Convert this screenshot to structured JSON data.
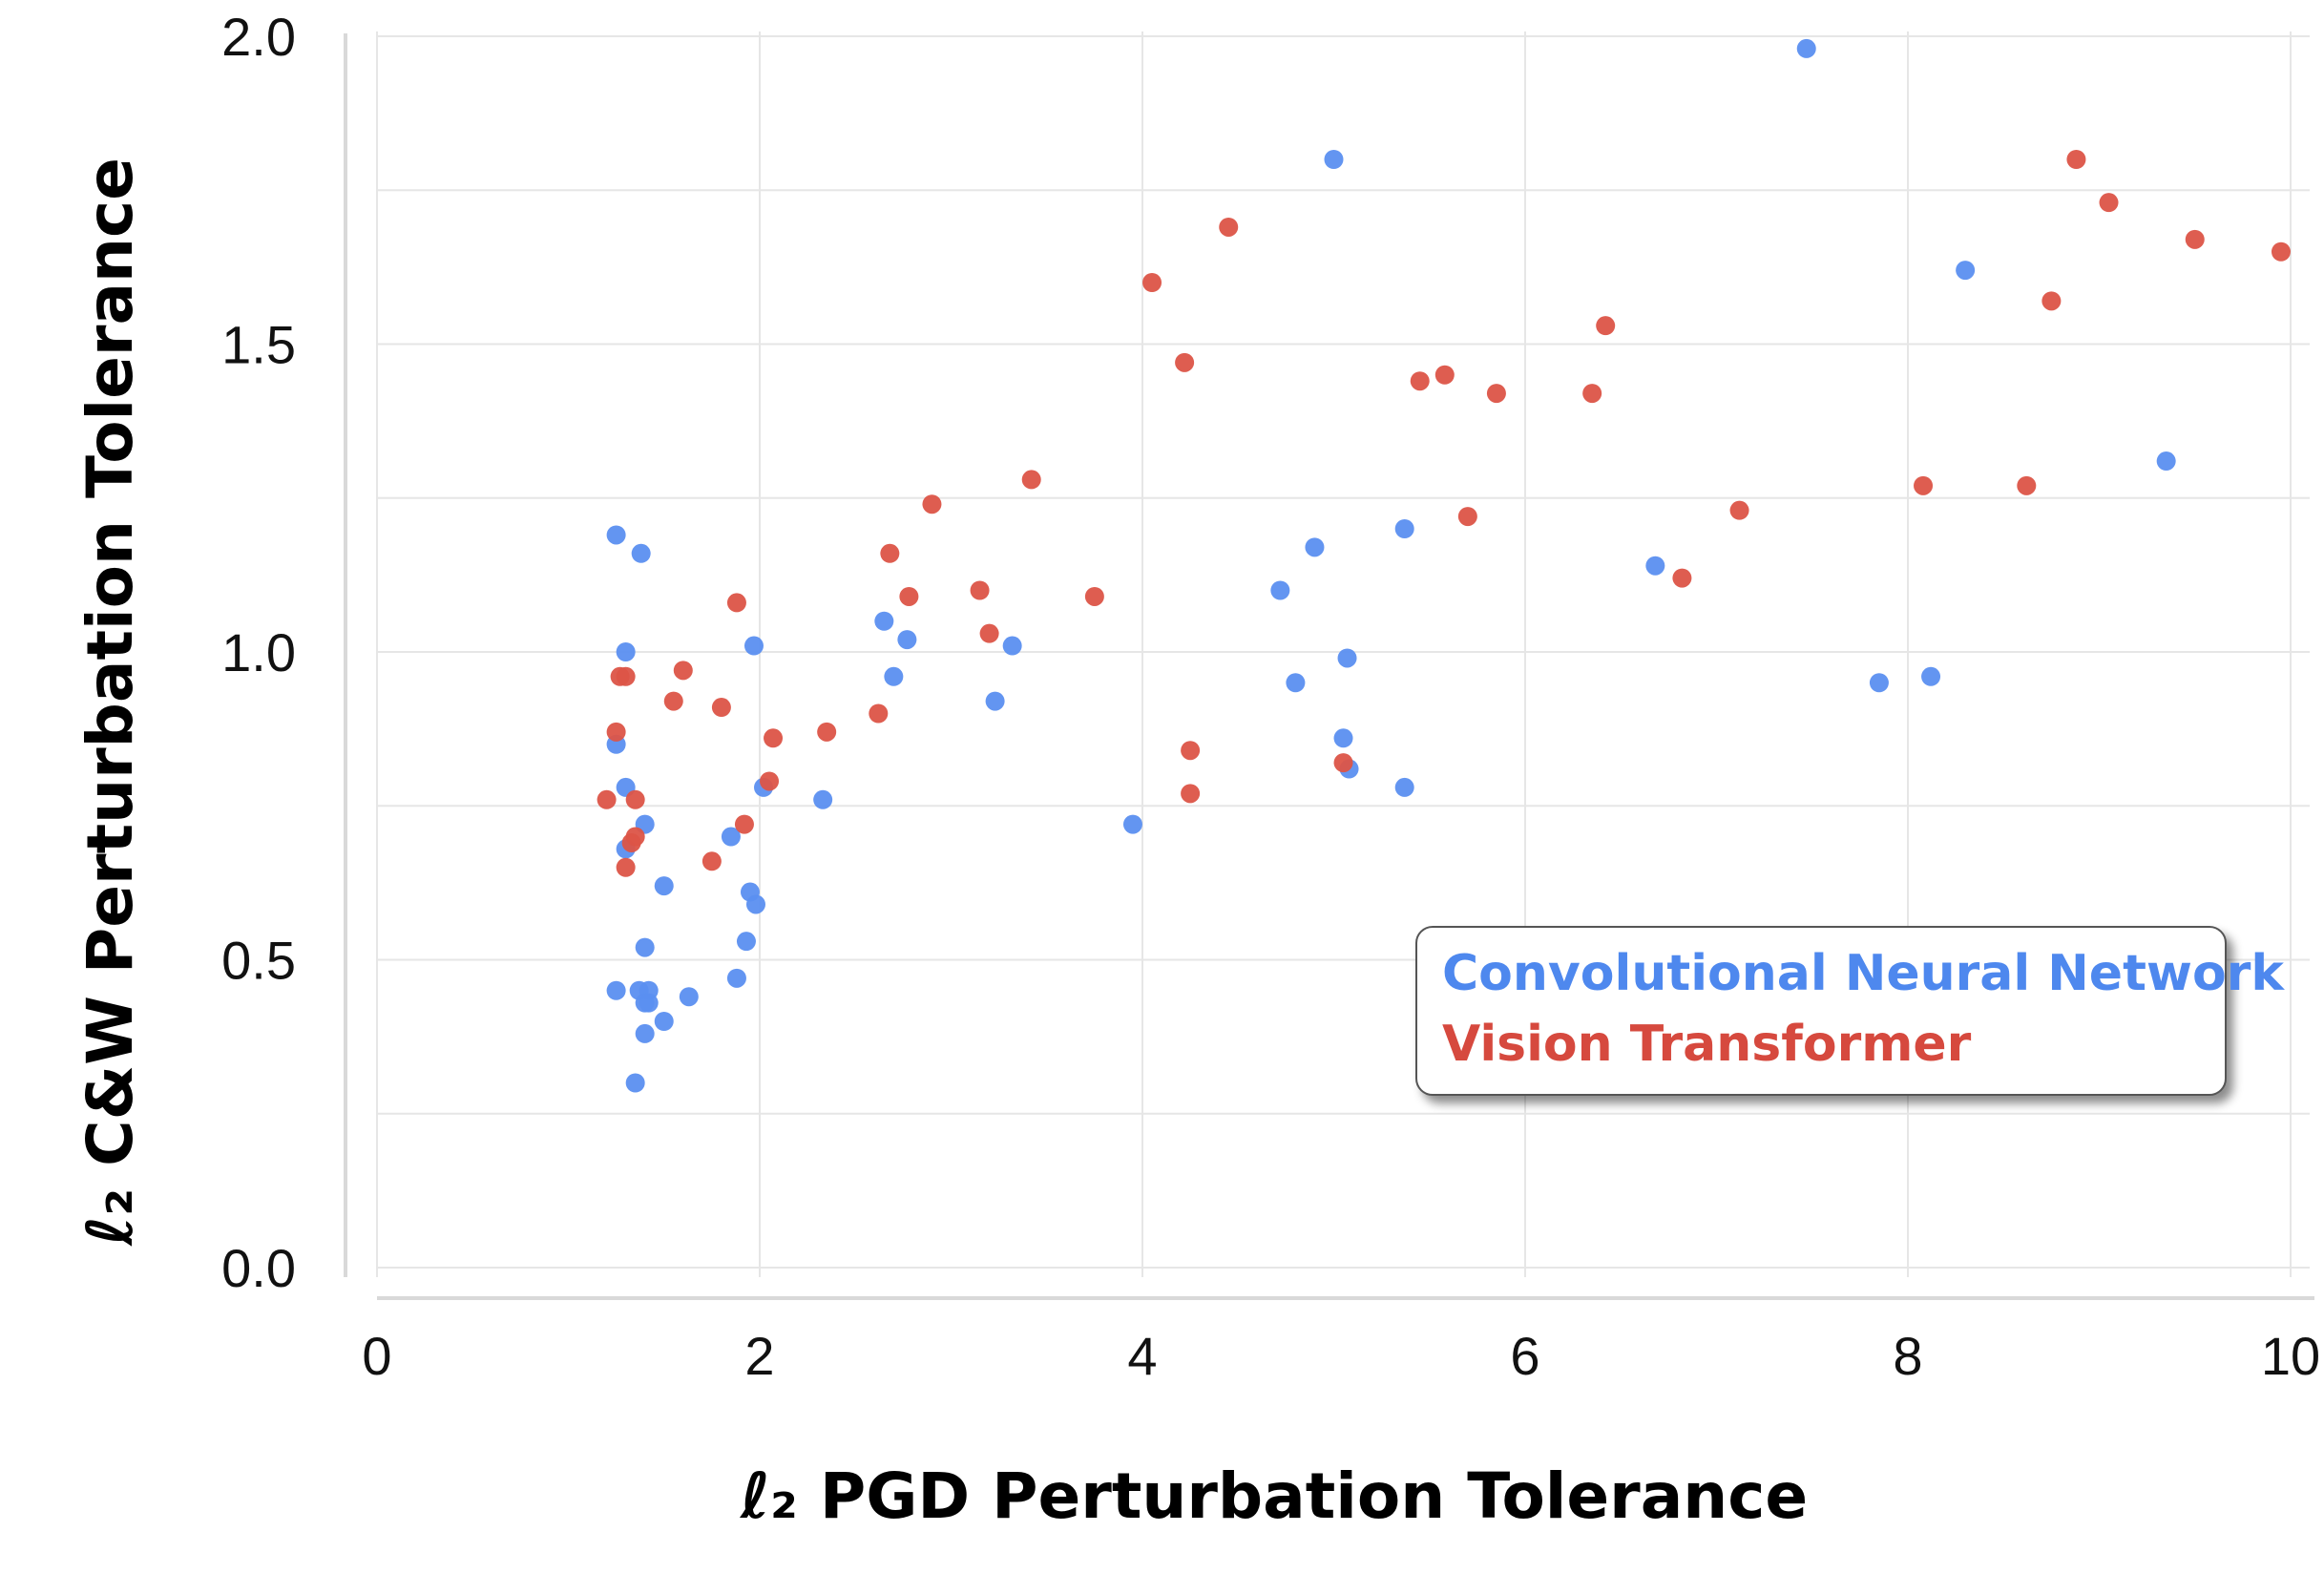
{
  "colors": {
    "cnn": "#5b8ff0",
    "vit": "#dc5447",
    "grid": "#e6e6e6",
    "axis": "#d9d9d9"
  },
  "chart_data": {
    "type": "scatter",
    "xlabel": "ℓ₂ PGD Perturbation Tolerance",
    "ylabel": "ℓ₂ C&W Perturbation Tolerance",
    "xlim": [
      0,
      10
    ],
    "ylim": [
      0,
      2.0
    ],
    "xticks": [
      "0",
      "2",
      "4",
      "6",
      "8",
      "10"
    ],
    "yticks": [
      "0.0",
      "0.5",
      "1.0",
      "1.5",
      "2.0"
    ],
    "grid": true,
    "legend_position": "bottom-right",
    "series": [
      {
        "name": "Convolutional Neural Network",
        "color": "#5b8ff0",
        "points": [
          [
            1.25,
            1.19
          ],
          [
            1.38,
            1.16
          ],
          [
            1.3,
            1.0
          ],
          [
            1.25,
            0.85
          ],
          [
            1.3,
            0.78
          ],
          [
            1.4,
            0.72
          ],
          [
            1.3,
            0.68
          ],
          [
            1.5,
            0.62
          ],
          [
            1.4,
            0.52
          ],
          [
            1.25,
            0.45
          ],
          [
            1.37,
            0.45
          ],
          [
            1.42,
            0.45
          ],
          [
            1.4,
            0.43
          ],
          [
            1.42,
            0.43
          ],
          [
            1.63,
            0.44
          ],
          [
            1.4,
            0.38
          ],
          [
            1.5,
            0.4
          ],
          [
            1.35,
            0.3
          ],
          [
            1.97,
            1.01
          ],
          [
            2.02,
            0.78
          ],
          [
            1.85,
            0.7
          ],
          [
            1.95,
            0.61
          ],
          [
            1.98,
            0.59
          ],
          [
            1.93,
            0.53
          ],
          [
            1.88,
            0.47
          ],
          [
            2.33,
            0.76
          ],
          [
            2.65,
            1.05
          ],
          [
            2.7,
            0.96
          ],
          [
            2.77,
            1.02
          ],
          [
            3.23,
            0.92
          ],
          [
            3.32,
            1.01
          ],
          [
            3.95,
            0.72
          ],
          [
            4.72,
            1.1
          ],
          [
            4.8,
            0.95
          ],
          [
            4.9,
            1.17
          ],
          [
            5.0,
            1.8
          ],
          [
            5.05,
            0.86
          ],
          [
            5.07,
            0.99
          ],
          [
            5.08,
            0.81
          ],
          [
            5.37,
            1.2
          ],
          [
            5.37,
            0.78
          ],
          [
            6.68,
            1.14
          ],
          [
            7.47,
            1.98
          ],
          [
            7.85,
            0.95
          ],
          [
            8.12,
            0.96
          ],
          [
            8.3,
            1.62
          ],
          [
            9.35,
            1.31
          ]
        ]
      },
      {
        "name": "Vision Transformer",
        "color": "#dc5447",
        "points": [
          [
            1.2,
            0.76
          ],
          [
            1.25,
            0.87
          ],
          [
            1.27,
            0.96
          ],
          [
            1.3,
            0.96
          ],
          [
            1.3,
            0.65
          ],
          [
            1.33,
            0.69
          ],
          [
            1.35,
            0.7
          ],
          [
            1.35,
            0.76
          ],
          [
            1.55,
            0.92
          ],
          [
            1.6,
            0.97
          ],
          [
            1.75,
            0.66
          ],
          [
            1.8,
            0.91
          ],
          [
            1.88,
            1.08
          ],
          [
            1.92,
            0.72
          ],
          [
            2.05,
            0.79
          ],
          [
            2.07,
            0.86
          ],
          [
            2.35,
            0.87
          ],
          [
            2.62,
            0.9
          ],
          [
            2.68,
            1.16
          ],
          [
            2.78,
            1.09
          ],
          [
            2.9,
            1.24
          ],
          [
            3.15,
            1.1
          ],
          [
            3.2,
            1.03
          ],
          [
            3.42,
            1.28
          ],
          [
            3.75,
            1.09
          ],
          [
            4.05,
            1.6
          ],
          [
            4.22,
            1.47
          ],
          [
            4.25,
            0.84
          ],
          [
            4.25,
            0.77
          ],
          [
            4.45,
            1.69
          ],
          [
            5.05,
            0.82
          ],
          [
            5.45,
            1.44
          ],
          [
            5.58,
            1.45
          ],
          [
            5.7,
            1.22
          ],
          [
            5.85,
            1.42
          ],
          [
            6.35,
            1.42
          ],
          [
            6.42,
            1.53
          ],
          [
            6.82,
            1.12
          ],
          [
            7.12,
            1.23
          ],
          [
            8.08,
            1.27
          ],
          [
            8.62,
            1.27
          ],
          [
            8.75,
            1.57
          ],
          [
            8.88,
            1.8
          ],
          [
            9.05,
            1.73
          ],
          [
            9.5,
            1.67
          ],
          [
            9.95,
            1.65
          ]
        ]
      }
    ]
  }
}
